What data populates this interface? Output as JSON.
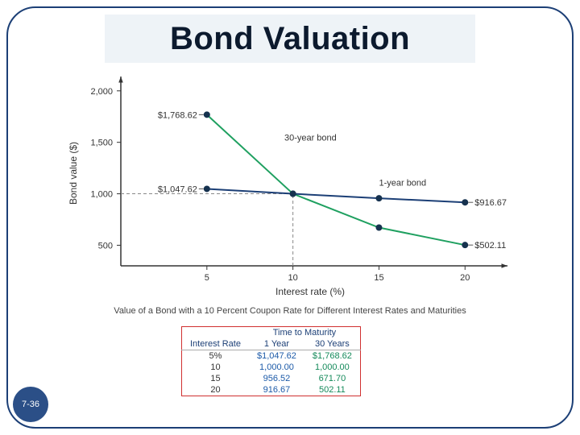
{
  "slide": {
    "title": "Bond Valuation",
    "page_label": "7-36",
    "border_color": "#1c3f76",
    "border_radius": 36,
    "title_bg": "#eef3f7"
  },
  "chart": {
    "type": "line",
    "xlabel": "Interest rate (%)",
    "ylabel": "Bond value ($)",
    "xlim": [
      0,
      22
    ],
    "ylim": [
      300,
      2100
    ],
    "xticks": [
      5,
      10,
      15,
      20
    ],
    "yticks": [
      500,
      1000,
      1500,
      2000
    ],
    "ytick_labels": [
      "500",
      "1,000",
      "1,500",
      "2,000"
    ],
    "axis_color": "#333333",
    "grid_color": "#999999",
    "background_color": "#ffffff",
    "axis_fontsize": 12,
    "tick_fontsize": 11,
    "label_fontsize": 11,
    "reference_lines": {
      "x_at": 10,
      "y_at": 1000,
      "dash": "4,3",
      "color": "#888888"
    },
    "series": [
      {
        "name": "30-year bond",
        "label_series": "30-year bond",
        "color": "#1fa060",
        "line_width": 2,
        "marker": "circle",
        "marker_fill": "#16324f",
        "marker_size": 4,
        "x": [
          5,
          10,
          15,
          20
        ],
        "y": [
          1768.62,
          1000.0,
          671.7,
          502.11
        ],
        "point_labels": {
          "5": "$1,768.62",
          "20": "$502.11"
        }
      },
      {
        "name": "1-year bond",
        "label_series": "1-year bond",
        "color": "#1c3f76",
        "line_width": 2,
        "marker": "circle",
        "marker_fill": "#16324f",
        "marker_size": 4,
        "x": [
          5,
          10,
          15,
          20
        ],
        "y": [
          1047.62,
          1000.0,
          956.52,
          916.67
        ],
        "point_labels": {
          "5": "$1,047.62",
          "20": "$916.67"
        }
      }
    ]
  },
  "caption": "Value of a Bond with a 10 Percent Coupon Rate for Different Interest Rates and Maturities",
  "table": {
    "border_color": "#d03030",
    "header_main": "Time to Maturity",
    "columns": [
      "Interest Rate",
      "1 Year",
      "30 Years"
    ],
    "col_colors": [
      "#333333",
      "#1c5aa8",
      "#148a5a"
    ],
    "rows": [
      [
        "5%",
        "$1,047.62",
        "$1,768.62"
      ],
      [
        "10",
        "1,000.00",
        "1,000.00"
      ],
      [
        "15",
        "956.52",
        "671.70"
      ],
      [
        "20",
        "916.67",
        "502.11"
      ]
    ]
  }
}
